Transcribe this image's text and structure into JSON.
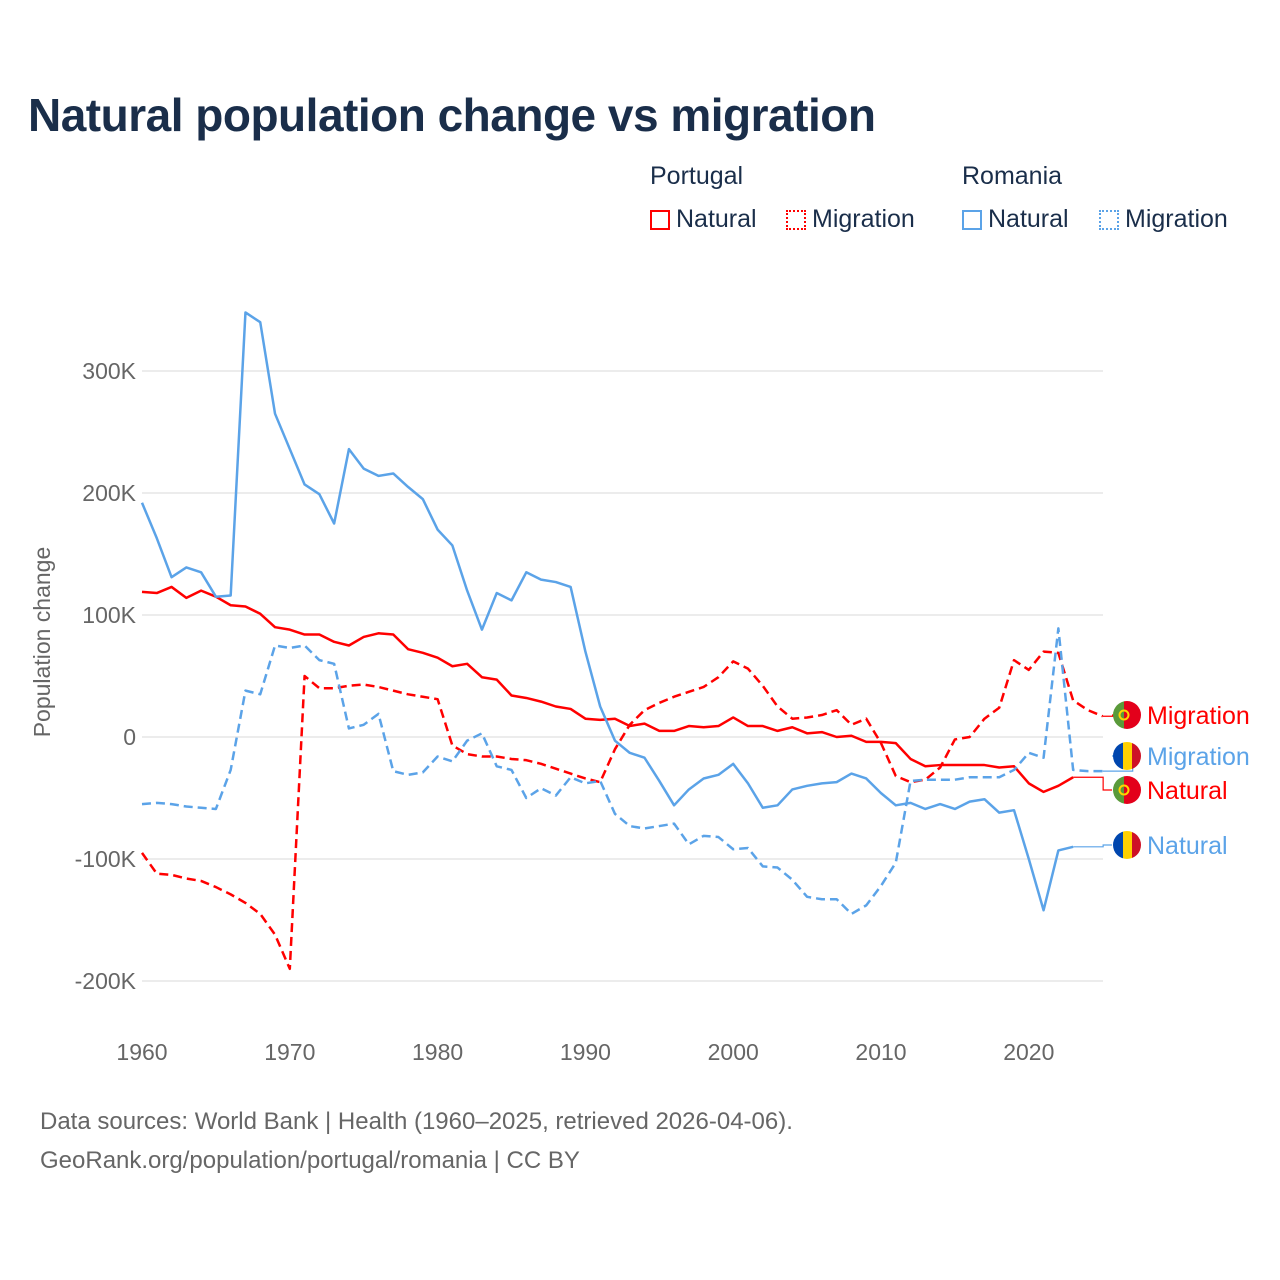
{
  "title": "Natural population change vs migration",
  "legend": {
    "groups": [
      {
        "name": "Portugal",
        "color": "#ff0000",
        "items": [
          "Natural",
          "Migration"
        ]
      },
      {
        "name": "Romania",
        "color": "#5ba3e8",
        "items": [
          "Natural",
          "Migration"
        ]
      }
    ]
  },
  "footer": {
    "line1": "Data sources: World Bank | Health (1960–2025, retrieved 2026-04-06).",
    "line2": "GeoRank.org/population/portugal/romania | CC BY"
  },
  "chart_data": {
    "type": "line",
    "title": "Natural population change vs migration",
    "xlabel": "",
    "ylabel": "Population change",
    "xlim": [
      1960,
      2025
    ],
    "ylim": [
      -220000,
      360000
    ],
    "x_ticks": [
      1960,
      1970,
      1980,
      1990,
      2000,
      2010,
      2020
    ],
    "x_tick_labels": [
      "1960",
      "1970",
      "1980",
      "1990",
      "2000",
      "2010",
      "2020"
    ],
    "y_ticks": [
      -200000,
      -100000,
      0,
      100000,
      200000,
      300000
    ],
    "y_tick_labels": [
      "-200K",
      "-100K",
      "0",
      "100K",
      "200K",
      "300K"
    ],
    "grid": true,
    "legend_position": "top-right",
    "series": [
      {
        "name": "Portugal Natural",
        "label": "Natural",
        "color": "#ff0000",
        "dashed": false,
        "start": 1960,
        "values_k": [
          119,
          118,
          123,
          114,
          120,
          115,
          108,
          107,
          101,
          90,
          88,
          84,
          84,
          78,
          75,
          82,
          85,
          84,
          72,
          69,
          65,
          58,
          60,
          49,
          47,
          34,
          32,
          29,
          25,
          23,
          15,
          14,
          15,
          9,
          11,
          5,
          5,
          9,
          8,
          9,
          16,
          9,
          9,
          5,
          8,
          3,
          4,
          0,
          1,
          -4,
          -4,
          -5,
          -18,
          -24,
          -23,
          -23,
          -23,
          -23,
          -25,
          -24,
          -38,
          -45,
          -40,
          -33
        ]
      },
      {
        "name": "Portugal Migration",
        "label": "Migration",
        "color": "#ff0000",
        "dashed": true,
        "start": 1960,
        "values_k": [
          -95,
          -112,
          -113,
          -116,
          -118,
          -123,
          -129,
          -136,
          -145,
          -162,
          -190,
          50,
          40,
          40,
          42,
          43,
          41,
          38,
          35,
          33,
          31,
          -7,
          -14,
          -16,
          -16,
          -18,
          -19,
          -22,
          -26,
          -30,
          -34,
          -37,
          -10,
          10,
          22,
          28,
          33,
          37,
          41,
          49,
          62,
          56,
          42,
          25,
          15,
          16,
          18,
          22,
          10,
          15,
          -5,
          -32,
          -37,
          -35,
          -25,
          -2,
          0,
          15,
          24,
          63,
          55,
          70,
          69,
          30,
          22,
          17
        ]
      },
      {
        "name": "Romania Natural",
        "label": "Natural",
        "color": "#5ba3e8",
        "dashed": false,
        "start": 1960,
        "values_k": [
          192,
          163,
          131,
          139,
          135,
          115,
          116,
          348,
          340,
          265,
          236,
          207,
          199,
          175,
          236,
          220,
          214,
          216,
          205,
          195,
          170,
          157,
          120,
          88,
          118,
          112,
          135,
          129,
          127,
          123,
          70,
          25,
          -3,
          -13,
          -17,
          -36,
          -56,
          -43,
          -34,
          -31,
          -22,
          -38,
          -58,
          -56,
          -43,
          -40,
          -38,
          -37,
          -30,
          -34,
          -46,
          -56,
          -54,
          -59,
          -55,
          -59,
          -53,
          -51,
          -62,
          -60,
          -100,
          -142,
          -93,
          -90
        ]
      },
      {
        "name": "Romania Migration",
        "label": "Migration",
        "color": "#5ba3e8",
        "dashed": true,
        "start": 1960,
        "values_k": [
          -55,
          -54,
          -55,
          -57,
          -58,
          -59,
          -27,
          38,
          35,
          75,
          73,
          75,
          63,
          60,
          7,
          10,
          19,
          -28,
          -31,
          -29,
          -16,
          -20,
          -3,
          3,
          -24,
          -27,
          -50,
          -42,
          -48,
          -33,
          -38,
          -36,
          -63,
          -73,
          -75,
          -73,
          -71,
          -88,
          -81,
          -82,
          -92,
          -91,
          -106,
          -107,
          -117,
          -131,
          -133,
          -133,
          -145,
          -138,
          -122,
          -103,
          -36,
          -35,
          -35,
          -35,
          -33,
          -33,
          -33,
          -27,
          -13,
          -17,
          89,
          -27,
          -28,
          -28
        ]
      }
    ],
    "end_labels": [
      {
        "series": "Portugal Migration",
        "text": "Migration",
        "flag": "portugal-flag"
      },
      {
        "series": "Romania Migration",
        "text": "Migration",
        "flag": "romania-flag"
      },
      {
        "series": "Portugal Natural",
        "text": "Natural",
        "flag": "portugal-flag"
      },
      {
        "series": "Romania Natural",
        "text": "Natural",
        "flag": "romania-flag"
      }
    ]
  }
}
